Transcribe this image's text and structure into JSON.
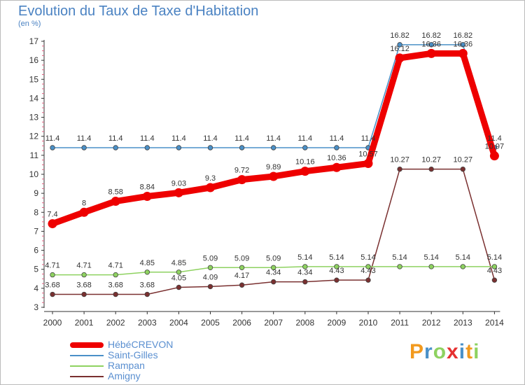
{
  "chart_data": {
    "type": "line",
    "title": "Evolution du Taux de Taxe d'Habitation",
    "subtitle": "(en %)",
    "categories": [
      "2000",
      "2001",
      "2002",
      "2003",
      "2004",
      "2005",
      "2006",
      "2007",
      "2008",
      "2009",
      "2010",
      "2011",
      "2012",
      "2013",
      "2014"
    ],
    "ylim": [
      3,
      17
    ],
    "yticks": [
      "3",
      "4",
      "5",
      "6",
      "7",
      "8",
      "9",
      "10",
      "11",
      "12",
      "13",
      "14",
      "15",
      "16",
      "17"
    ],
    "grid": false,
    "legend_position": "bottom-left",
    "series": [
      {
        "name": "HébéCREVON",
        "color": "#ee0000",
        "values": [
          7.4,
          8,
          8.58,
          8.84,
          9.03,
          9.3,
          9.72,
          9.89,
          10.16,
          10.36,
          10.57,
          16.12,
          16.36,
          16.36,
          10.97
        ],
        "labels": [
          "7.4",
          "8",
          "8.58",
          "8.84",
          "9.03",
          "9.3",
          "9.72",
          "9.89",
          "10.16",
          "10.36",
          "10.57",
          "16.12",
          "16.36",
          "16.36",
          "10.97"
        ]
      },
      {
        "name": "Saint-Gilles",
        "color": "#4a90c8",
        "values": [
          11.4,
          11.4,
          11.4,
          11.4,
          11.4,
          11.4,
          11.4,
          11.4,
          11.4,
          11.4,
          11.4,
          16.82,
          16.82,
          16.82,
          11.4
        ],
        "labels": [
          "11.4",
          "11.4",
          "11.4",
          "11.4",
          "11.4",
          "11.4",
          "11.4",
          "11.4",
          "11.4",
          "11.4",
          "11.4",
          "16.82",
          "16.82",
          "16.82",
          "11.4"
        ]
      },
      {
        "name": "Rampan",
        "color": "#8ed260",
        "values": [
          4.71,
          4.71,
          4.71,
          4.85,
          4.85,
          5.09,
          5.09,
          5.09,
          5.14,
          5.14,
          5.14,
          5.14,
          5.14,
          5.14,
          5.14
        ],
        "labels": [
          "4.71",
          "4.71",
          "4.71",
          "4.85",
          "4.85",
          "5.09",
          "5.09",
          "5.09",
          "5.14",
          "5.14",
          "5.14",
          "5.14",
          "5.14",
          "5.14",
          "5.14"
        ]
      },
      {
        "name": "Amigny",
        "color": "#7a3030",
        "values": [
          3.68,
          3.68,
          3.68,
          3.68,
          4.05,
          4.09,
          4.17,
          4.34,
          4.34,
          4.43,
          4.43,
          10.27,
          10.27,
          10.27,
          4.43
        ],
        "labels": [
          "3.68",
          "3.68",
          "3.68",
          "3.68",
          "4.05",
          "4.09",
          "4.17",
          "4.34",
          "4.34",
          "4.43",
          "4.43",
          "10.27",
          "10.27",
          "10.27",
          "4.43"
        ]
      }
    ]
  },
  "logo": {
    "p": "P",
    "r": "r",
    "o": "o",
    "x": "x",
    "i1": "i",
    "t": "t",
    "i2": "i"
  },
  "colors": {
    "title": "#4a82c2",
    "frame": "#bbbbbb",
    "axis": "#333333",
    "label": "#333333"
  }
}
